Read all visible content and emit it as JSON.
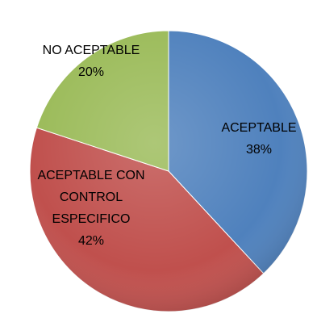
{
  "chart_data": {
    "type": "pie",
    "title": "",
    "slices": [
      {
        "label": "ACEPTABLE",
        "value": 38,
        "value_label": "38%",
        "color": "#4F81BD"
      },
      {
        "label": "ACEPTABLE CON CONTROL ESPECIFICO",
        "label_lines": [
          "ACEPTABLE CON",
          "CONTROL",
          "ESPECIFICO"
        ],
        "value": 42,
        "value_label": "42%",
        "color": "#C0504D"
      },
      {
        "label": "NO ACEPTABLE",
        "value": 20,
        "value_label": "20%",
        "color": "#9BBB59"
      }
    ],
    "start_angle": "12 o'clock",
    "direction": "clockwise",
    "style": "3d-shaded",
    "legend": "none"
  }
}
